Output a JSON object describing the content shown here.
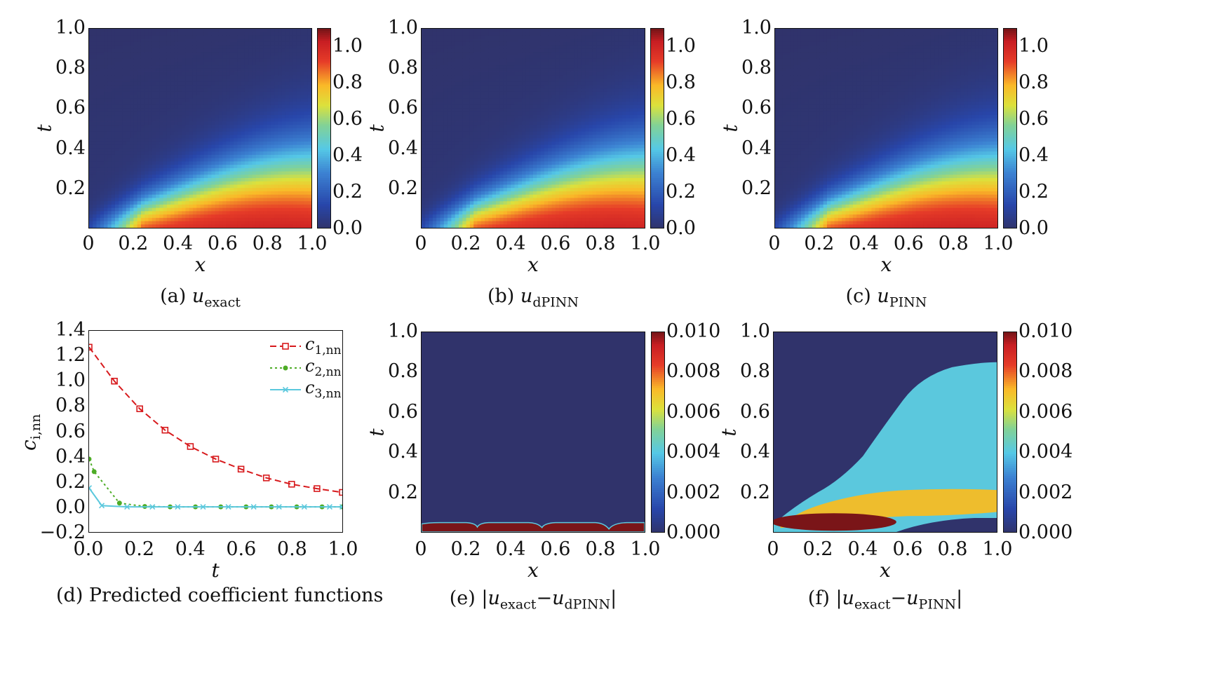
{
  "heatmap_panels": [
    {
      "id": "a",
      "caption_prefix": "(a)",
      "caption_var": "u",
      "caption_sub": "exact",
      "caption_rest": "",
      "kind": "solution"
    },
    {
      "id": "b",
      "caption_prefix": "(b)",
      "caption_var": "u",
      "caption_sub": "dPINN",
      "caption_rest": "",
      "kind": "solution"
    },
    {
      "id": "c",
      "caption_prefix": "(c)",
      "caption_var": "u",
      "caption_sub": "PINN",
      "caption_rest": "",
      "kind": "solution"
    }
  ],
  "error_panels": [
    {
      "id": "e",
      "caption": "(e) |u_exact−u_dPINN|",
      "caption_prefix": "(e)",
      "caption_sub_a": "exact",
      "caption_sub_b": "dPINN",
      "kind": "error_dpinn"
    },
    {
      "id": "f",
      "caption": "(f) |u_exact−u_PINN|",
      "caption_prefix": "(f)",
      "caption_sub_a": "exact",
      "caption_sub_b": "PINN",
      "kind": "error_pinn"
    }
  ],
  "axes": {
    "xlabel": "x",
    "ylabel": "t",
    "x_ticks_solution": [
      "0",
      "0.2",
      "0.4",
      "0.6",
      "0.8",
      "1.0"
    ],
    "y_ticks_solution": [
      "0.2",
      "0.4",
      "0.6",
      "0.8",
      "1.0"
    ],
    "cbar_ticks_solution": [
      "0.0",
      "0.2",
      "0.4",
      "0.6",
      "0.8",
      "1.0"
    ],
    "cbar_ticks_error": [
      "0.000",
      "0.002",
      "0.004",
      "0.006",
      "0.008",
      "0.010"
    ]
  },
  "line_panel": {
    "caption": "(d) Predicted coefficient functions",
    "xlabel": "t",
    "ylabel": "c",
    "ylabel_sub": "i,nn",
    "x_ticks": [
      "0.0",
      "0.2",
      "0.4",
      "0.6",
      "0.8",
      "1.0"
    ],
    "y_ticks": [
      "−0.2",
      "0.0",
      "0.2",
      "0.4",
      "0.6",
      "0.8",
      "1.0",
      "1.2",
      "1.4"
    ]
  },
  "colors": {
    "c1": "#d7191c",
    "c2": "#4dac26",
    "c3": "#5bc8dd",
    "cmap_low": "#30336b",
    "cmap_high": "#7a1518"
  },
  "chart_data": [
    {
      "type": "heatmap",
      "title": "(a) u_exact",
      "xlabel": "x",
      "ylabel": "t",
      "xlim": [
        0,
        1
      ],
      "ylim": [
        0,
        1
      ],
      "colorbar_range": [
        0.0,
        1.1
      ]
    },
    {
      "type": "heatmap",
      "title": "(b) u_dPINN",
      "xlabel": "x",
      "ylabel": "t",
      "xlim": [
        0,
        1
      ],
      "ylim": [
        0,
        1
      ],
      "colorbar_range": [
        0.0,
        1.1
      ]
    },
    {
      "type": "heatmap",
      "title": "(c) u_PINN",
      "xlabel": "x",
      "ylabel": "t",
      "xlim": [
        0,
        1
      ],
      "ylim": [
        0,
        1
      ],
      "colorbar_range": [
        0.0,
        1.1
      ]
    },
    {
      "type": "line",
      "title": "(d) Predicted coefficient functions",
      "xlabel": "t",
      "ylabel": "c_i,nn",
      "xlim": [
        0,
        1
      ],
      "ylim": [
        -0.2,
        1.4
      ],
      "legend": "top-right",
      "series": [
        {
          "name": "c1,nn",
          "x": [
            0.0,
            0.1,
            0.2,
            0.3,
            0.4,
            0.5,
            0.6,
            0.7,
            0.8,
            0.9,
            1.0
          ],
          "values": [
            1.27,
            1.0,
            0.78,
            0.61,
            0.48,
            0.38,
            0.3,
            0.23,
            0.18,
            0.145,
            0.115
          ]
        },
        {
          "name": "c2,nn",
          "x": [
            0.0,
            0.02,
            0.12,
            0.22,
            0.32,
            0.42,
            0.52,
            0.62,
            0.72,
            0.82,
            0.92,
            1.0
          ],
          "values": [
            0.38,
            0.28,
            0.03,
            0.003,
            0.0,
            0.0,
            0.0,
            0.0,
            0.0,
            0.0,
            0.0,
            0.0
          ]
        },
        {
          "name": "c3,nn",
          "x": [
            0.0,
            0.05,
            0.15,
            0.25,
            0.35,
            0.45,
            0.55,
            0.65,
            0.75,
            0.85,
            0.95,
            1.0
          ],
          "values": [
            0.15,
            0.01,
            0.0,
            0.0,
            0.0,
            0.0,
            0.0,
            0.0,
            0.0,
            0.0,
            0.0,
            0.0
          ]
        }
      ]
    },
    {
      "type": "heatmap",
      "title": "(e) |u_exact − u_dPINN|",
      "xlabel": "x",
      "ylabel": "t",
      "xlim": [
        0,
        1
      ],
      "ylim": [
        0,
        1
      ],
      "colorbar_range": [
        0.0,
        0.01
      ]
    },
    {
      "type": "heatmap",
      "title": "(f) |u_exact − u_PINN|",
      "xlabel": "x",
      "ylabel": "t",
      "xlim": [
        0,
        1
      ],
      "ylim": [
        0,
        1
      ],
      "colorbar_range": [
        0.0,
        0.01
      ]
    }
  ]
}
